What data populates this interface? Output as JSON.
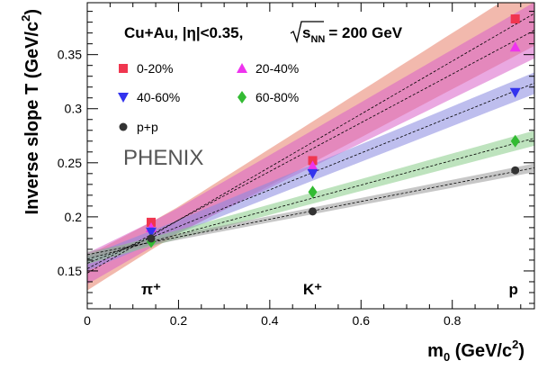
{
  "chart_data": {
    "type": "scatter",
    "title": "",
    "xlabel_main": "m",
    "xlabel_sub": "0",
    "xlabel_unit": " (GeV/c",
    "xlabel_exp": "2",
    "xlabel_close": ")",
    "ylabel_main": "Inverse slope T (GeV/c",
    "ylabel_exp": "2",
    "ylabel_close": ")",
    "xlim": [
      0,
      0.98
    ],
    "ylim": [
      0.115,
      0.398
    ],
    "x_ticks": [
      0,
      0.2,
      0.4,
      0.6,
      0.8
    ],
    "x_tick_labels": [
      "0",
      "0.2",
      "0.4",
      "0.6",
      "0.8"
    ],
    "y_ticks": [
      0.15,
      0.2,
      0.25,
      0.3,
      0.35
    ],
    "y_tick_labels": [
      "0.15",
      "0.2",
      "0.25",
      "0.3",
      "0.35"
    ],
    "particles": [
      {
        "label": "π⁺",
        "x": 0.14
      },
      {
        "label": "K⁺",
        "x": 0.494
      },
      {
        "label": "p",
        "x": 0.938
      }
    ],
    "annotation": {
      "system": "Cu+Au, |η|<0.35,",
      "energy_value": "= 200 GeV",
      "sqrt_sub": "NN",
      "sqrt_main": "s"
    },
    "watermark": "PHENIX",
    "series": [
      {
        "name": "0-20%",
        "marker": "square",
        "color": "#f0364f",
        "band_color": "#e8806a",
        "x": [
          0.14,
          0.494,
          0.938
        ],
        "y": [
          0.195,
          0.252,
          0.383
        ],
        "fit": {
          "intercept": 0.148,
          "slope": 0.245,
          "band": [
            0.012,
            0.03
          ]
        }
      },
      {
        "name": "20-40%",
        "marker": "triangle-up",
        "color": "#ee33ee",
        "band_color": "#d860c8",
        "x": [
          0.14,
          0.494,
          0.938
        ],
        "y": [
          0.19,
          0.247,
          0.357
        ],
        "fit": {
          "intercept": 0.152,
          "slope": 0.225,
          "band": [
            0.011,
            0.026
          ]
        }
      },
      {
        "name": "40-60%",
        "marker": "triangle-down",
        "color": "#3333ee",
        "band_color": "#8888e0",
        "x": [
          0.14,
          0.494,
          0.938
        ],
        "y": [
          0.186,
          0.24,
          0.315
        ],
        "fit": {
          "intercept": 0.157,
          "slope": 0.17,
          "band": [
            0.006,
            0.01
          ]
        }
      },
      {
        "name": "60-80%",
        "marker": "diamond",
        "color": "#33bb33",
        "band_color": "#88cc88",
        "x": [
          0.14,
          0.494,
          0.938
        ],
        "y": [
          0.177,
          0.223,
          0.27
        ],
        "fit": {
          "intercept": 0.161,
          "slope": 0.114,
          "band": [
            0.004,
            0.007
          ]
        }
      },
      {
        "name": "p+p",
        "marker": "circle",
        "color": "#333333",
        "band_color": "#999999",
        "x": [
          0.14,
          0.494,
          0.938
        ],
        "y": [
          0.18,
          0.205,
          0.243
        ],
        "fit": {
          "intercept": 0.165,
          "slope": 0.082,
          "band": [
            0.0025,
            0.004
          ]
        }
      }
    ]
  }
}
